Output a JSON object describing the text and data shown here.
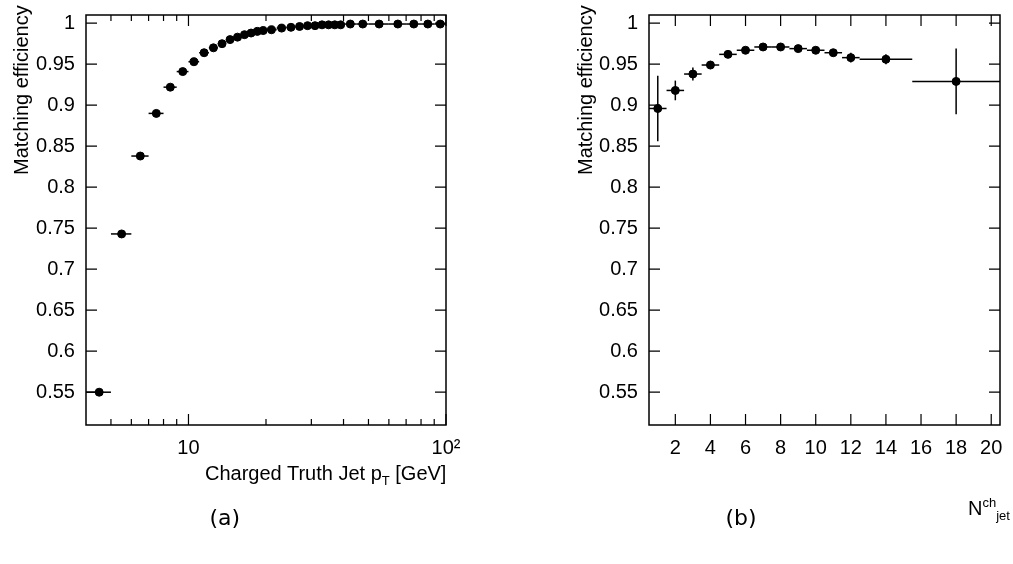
{
  "chart_data": [
    {
      "type": "scatter",
      "xlabel": "Charged Truth Jet p$_{T}$ [GeV]",
      "ylabel": "Matching efficiency",
      "log": "x",
      "marker": "circle",
      "color": "#000000",
      "x": [
        4.5,
        5.5,
        6.5,
        7.5,
        8.5,
        9.5,
        10.5,
        11.5,
        12.5,
        13.5,
        14.5,
        15.5,
        16.5,
        17.5,
        18.5,
        19.5,
        21,
        23,
        25,
        27,
        29,
        31,
        33,
        35,
        37,
        39,
        42.5,
        47.5,
        55,
        65,
        75,
        85,
        95
      ],
      "values": [
        0.55,
        0.743,
        0.838,
        0.89,
        0.922,
        0.941,
        0.953,
        0.964,
        0.97,
        0.975,
        0.98,
        0.983,
        0.986,
        0.988,
        0.99,
        0.991,
        0.992,
        0.994,
        0.995,
        0.996,
        0.997,
        0.997,
        0.998,
        0.998,
        0.998,
        0.998,
        0.999,
        0.999,
        0.999,
        0.999,
        0.999,
        0.999,
        0.999
      ],
      "xerrors": [
        0.5,
        0.5,
        0.5,
        0.5,
        0.5,
        0.5,
        0.5,
        0.5,
        0.5,
        0.5,
        0.5,
        0.5,
        0.5,
        0.5,
        0.5,
        0.5,
        1,
        1,
        1,
        1,
        1,
        1,
        1,
        1,
        1,
        1,
        2.5,
        2.5,
        5,
        5,
        5,
        5,
        5
      ],
      "xlim": [
        4,
        100
      ],
      "ylim": [
        0.51,
        1.01
      ],
      "xticks": [
        {
          "value": 5,
          "label": null
        },
        {
          "value": 6,
          "label": null
        },
        {
          "value": 7,
          "label": null
        },
        {
          "value": 8,
          "label": null
        },
        {
          "value": 9,
          "label": null
        },
        {
          "value": 10,
          "label": "10"
        },
        {
          "value": 20,
          "label": null
        },
        {
          "value": 30,
          "label": null
        },
        {
          "value": 40,
          "label": null
        },
        {
          "value": 50,
          "label": null
        },
        {
          "value": 60,
          "label": null
        },
        {
          "value": 70,
          "label": null
        },
        {
          "value": 80,
          "label": null
        },
        {
          "value": 90,
          "label": null
        },
        {
          "value": 100,
          "label": "10²"
        }
      ],
      "yticks": [
        0.55,
        0.6,
        0.65,
        0.7,
        0.75,
        0.8,
        0.85,
        0.9,
        0.95,
        1
      ],
      "annotations": [
        "(a)"
      ]
    },
    {
      "type": "scatter",
      "xlabel": "N$^{ch}$$_{jet}$",
      "ylabel": "Matching efficiency",
      "marker": "circle",
      "color": "#000000",
      "x": [
        1,
        2,
        3,
        4,
        5,
        6,
        7,
        8,
        9,
        10,
        11,
        12,
        14,
        18
      ],
      "values": [
        0.896,
        0.918,
        0.938,
        0.949,
        0.962,
        0.967,
        0.971,
        0.971,
        0.969,
        0.967,
        0.964,
        0.958,
        0.956,
        0.929
      ],
      "errors": [
        0.04,
        0.012,
        0.008,
        0.005,
        0.003,
        0.003,
        0.003,
        0.003,
        0.003,
        0.003,
        0.004,
        0.006,
        0.006,
        0.04
      ],
      "xerrors": [
        0.5,
        0.5,
        0.5,
        0.5,
        0.5,
        0.5,
        0.5,
        0.5,
        0.5,
        0.5,
        0.5,
        0.5,
        1.5,
        2.5
      ],
      "xlim": [
        0.5,
        20.5
      ],
      "ylim": [
        0.51,
        1.01
      ],
      "xticks": [
        2,
        4,
        6,
        8,
        10,
        12,
        14,
        16,
        18,
        20
      ],
      "yticks": [
        0.55,
        0.6,
        0.65,
        0.7,
        0.75,
        0.8,
        0.85,
        0.9,
        0.95,
        1
      ],
      "annotations": [
        "(b)"
      ]
    }
  ]
}
